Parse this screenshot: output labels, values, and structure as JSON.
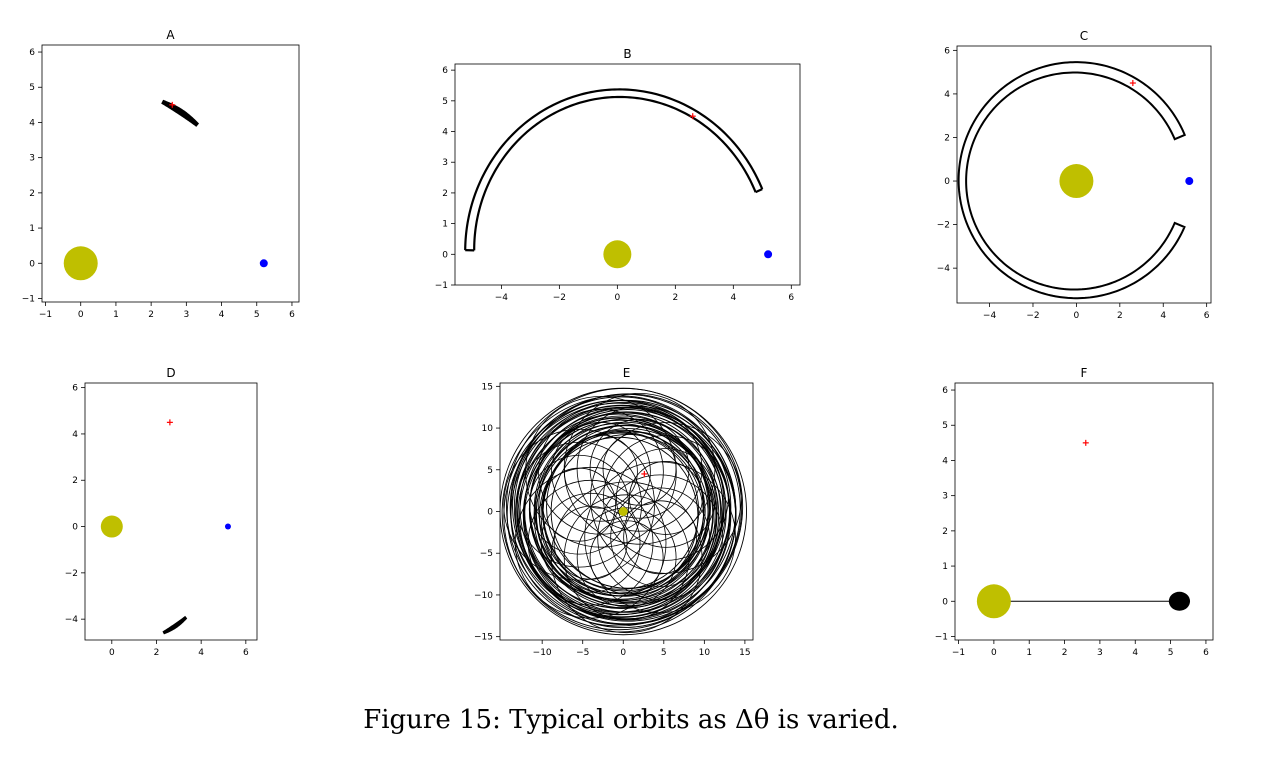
{
  "figure": {
    "caption": "Figure 15: Typical orbits as Δθ is varied."
  },
  "colors": {
    "sun": "#bfbf00",
    "planet": "#0000ff",
    "marker": "#ff0000",
    "orbit": "#000000"
  },
  "chart_data": [
    {
      "title": "A",
      "type": "scatter",
      "xlim": [
        -1.1,
        6.2
      ],
      "ylim": [
        -1.1,
        6.2
      ],
      "xticks": [
        -1,
        0,
        1,
        2,
        3,
        4,
        5,
        6
      ],
      "yticks": [
        -1,
        0,
        1,
        2,
        3,
        4,
        5,
        6
      ],
      "sun": [
        0,
        0
      ],
      "planet": [
        5.2,
        0
      ],
      "marker": [
        2.6,
        4.5
      ],
      "orbit": "short-arc",
      "grid": false
    },
    {
      "title": "B",
      "type": "scatter",
      "xlim": [
        -5.6,
        6.3
      ],
      "ylim": [
        -1.0,
        6.2
      ],
      "xticks": [
        -4,
        -2,
        0,
        2,
        4,
        6
      ],
      "yticks": [
        -1,
        0,
        1,
        2,
        3,
        4,
        5,
        6
      ],
      "sun": [
        0,
        0
      ],
      "planet": [
        5.2,
        0
      ],
      "marker": [
        2.6,
        4.5
      ],
      "orbit": "horseshoe-upper",
      "grid": false
    },
    {
      "title": "C",
      "type": "scatter",
      "xlim": [
        -5.5,
        6.2
      ],
      "ylim": [
        -5.6,
        6.2
      ],
      "xticks": [
        -4,
        -2,
        0,
        2,
        4,
        6
      ],
      "yticks": [
        -4,
        -2,
        0,
        2,
        4,
        6
      ],
      "sun": [
        0,
        0
      ],
      "planet": [
        5.2,
        0
      ],
      "marker": [
        2.6,
        4.5
      ],
      "orbit": "horseshoe-full",
      "grid": false
    },
    {
      "title": "D",
      "type": "scatter",
      "xlim": [
        -1.2,
        6.5
      ],
      "ylim": [
        -4.9,
        6.2
      ],
      "xticks": [
        0,
        2,
        4,
        6
      ],
      "yticks": [
        -4,
        -2,
        0,
        2,
        4,
        6
      ],
      "sun": [
        0,
        0
      ],
      "planet": [
        5.2,
        0
      ],
      "marker": [
        2.6,
        4.5
      ],
      "orbit": "short-arc-lower",
      "grid": false
    },
    {
      "title": "E",
      "type": "scatter",
      "xlim": [
        -15.2,
        16.0
      ],
      "ylim": [
        -15.4,
        15.4
      ],
      "xticks": [
        -10,
        -5,
        0,
        5,
        10,
        15
      ],
      "yticks": [
        -15,
        -10,
        -5,
        0,
        5,
        10,
        15
      ],
      "sun": [
        0,
        0
      ],
      "marker": [
        2.6,
        4.5
      ],
      "orbit": "chaotic",
      "grid": false
    },
    {
      "title": "F",
      "type": "scatter",
      "xlim": [
        -1.1,
        6.2
      ],
      "ylim": [
        -1.1,
        6.2
      ],
      "xticks": [
        -1,
        0,
        1,
        2,
        3,
        4,
        5,
        6
      ],
      "yticks": [
        -1,
        0,
        1,
        2,
        3,
        4,
        5,
        6
      ],
      "sun": [
        0,
        0
      ],
      "planet": [
        5.2,
        0
      ],
      "marker": [
        2.6,
        4.5
      ],
      "orbit": "escape-line",
      "grid": false
    }
  ]
}
